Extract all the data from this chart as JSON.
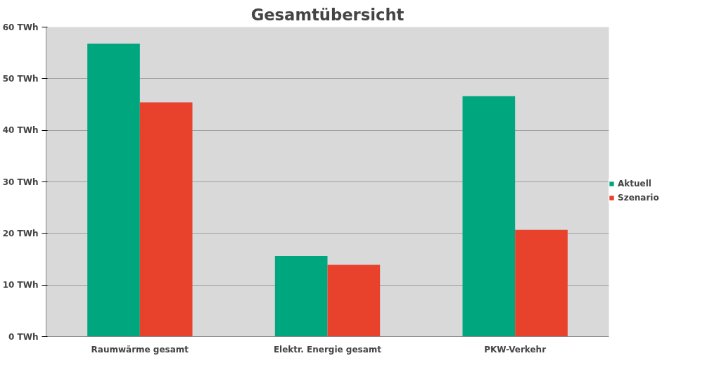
{
  "chart_data": {
    "type": "bar",
    "title": "Gesamtübersicht",
    "categories": [
      "Raumwärme gesamt",
      "Elektr. Energie gesamt",
      "PKW-Verkehr"
    ],
    "series": [
      {
        "name": "Aktuell",
        "color": "#00a67e",
        "values": [
          56.8,
          15.6,
          46.6
        ]
      },
      {
        "name": "Szenario",
        "color": "#e8412c",
        "values": [
          45.4,
          13.9,
          20.7
        ]
      }
    ],
    "ylim": [
      0,
      60
    ],
    "yticks": [
      {
        "value": 0,
        "label": "0 TWh"
      },
      {
        "value": 10,
        "label": "10 TWh"
      },
      {
        "value": 20,
        "label": "20 TWh"
      },
      {
        "value": 30,
        "label": "30 TWh"
      },
      {
        "value": 40,
        "label": "40 TWh"
      },
      {
        "value": 50,
        "label": "50 TWh"
      },
      {
        "value": 60,
        "label": "60 TWh"
      }
    ],
    "grid": "y",
    "legend": "right"
  }
}
